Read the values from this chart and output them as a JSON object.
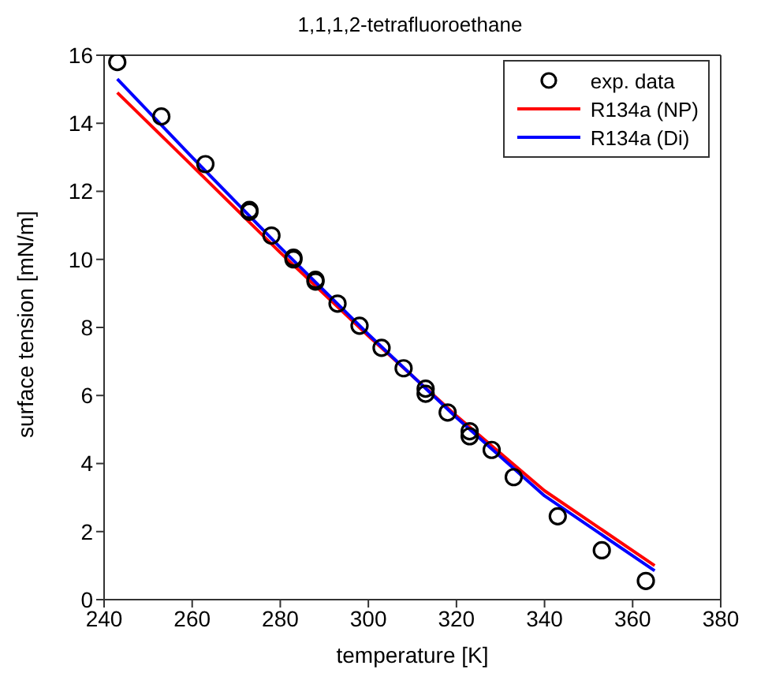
{
  "chart_data": {
    "type": "line",
    "title": "1,1,1,2-tetrafluoroethane",
    "xlabel": "temperature [K]",
    "ylabel": "surface tension [mN/m]",
    "xlim": [
      240,
      380
    ],
    "xticks": [
      240,
      260,
      280,
      300,
      320,
      340,
      360,
      380
    ],
    "ylim": [
      0,
      16
    ],
    "yticks": [
      0,
      2,
      4,
      6,
      8,
      10,
      12,
      14,
      16
    ],
    "grid": false,
    "legend": "top right",
    "series": [
      {
        "name": "exp. data",
        "type": "scatter",
        "marker": "circle",
        "color": "#000000",
        "x": [
          243,
          253,
          263,
          273,
          273,
          278,
          283,
          283,
          288,
          288,
          293,
          298,
          303,
          308,
          313,
          313,
          318,
          323,
          323,
          328,
          333,
          343,
          353,
          363
        ],
        "values": [
          15.8,
          14.2,
          12.8,
          11.45,
          11.4,
          10.7,
          10.05,
          10.0,
          9.4,
          9.35,
          8.7,
          8.05,
          7.4,
          6.8,
          6.2,
          6.05,
          5.5,
          4.95,
          4.8,
          4.4,
          3.6,
          2.45,
          1.45,
          0.55
        ]
      },
      {
        "name": "R134a (NP)",
        "color": "#ff0000",
        "x": [
          243,
          260,
          280,
          300,
          320,
          340,
          365
        ],
        "values": [
          14.9,
          12.75,
          10.2,
          7.75,
          5.4,
          3.2,
          1.0
        ]
      },
      {
        "name": "R134a (Di)",
        "color": "#0000ff",
        "x": [
          243,
          260,
          280,
          300,
          320,
          340,
          365
        ],
        "values": [
          15.3,
          13.0,
          10.35,
          7.8,
          5.35,
          3.05,
          0.85
        ]
      }
    ]
  }
}
